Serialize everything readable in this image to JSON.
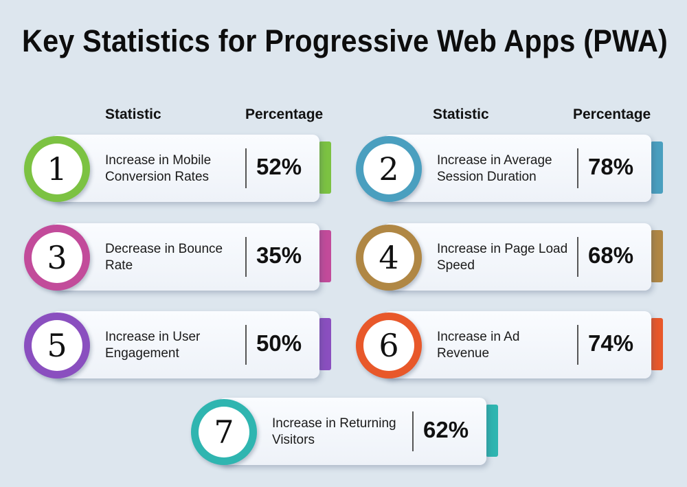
{
  "title": "Key Statistics for Progressive Web Apps (PWA)",
  "headers": {
    "left_statistic": "Statistic",
    "left_percentage": "Percentage",
    "right_statistic": "Statistic",
    "right_percentage": "Percentage"
  },
  "items": [
    {
      "number": "1",
      "label": "Increase in Mobile Conversion Rates",
      "value": "52%",
      "color": "#7cc242"
    },
    {
      "number": "2",
      "label": "Increase in Average Session Duration",
      "value": "78%",
      "color": "#4a9fbf"
    },
    {
      "number": "3",
      "label": "Decrease in Bounce Rate",
      "value": "35%",
      "color": "#c24b9a"
    },
    {
      "number": "4",
      "label": "Increase in Page Load Speed",
      "value": "68%",
      "color": "#b08744"
    },
    {
      "number": "5",
      "label": "Increase in User Engagement",
      "value": "50%",
      "color": "#8a4fbf"
    },
    {
      "number": "6",
      "label": "Increase in Ad Revenue",
      "value": "74%",
      "color": "#e8582a"
    },
    {
      "number": "7",
      "label": "Increase in Returning Visitors",
      "value": "62%",
      "color": "#2fb5b0"
    }
  ]
}
